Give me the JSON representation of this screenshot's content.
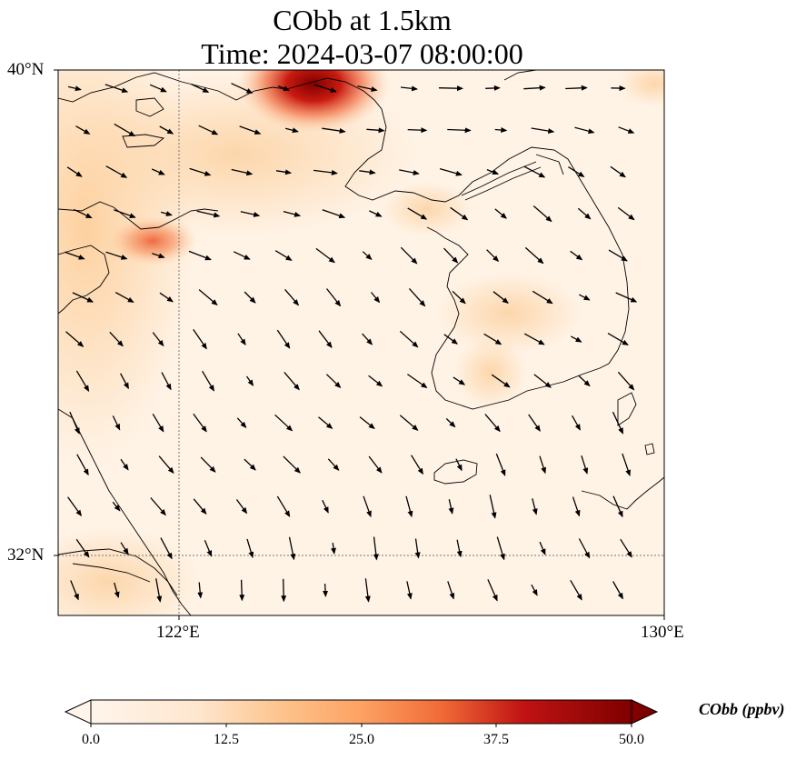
{
  "map": {
    "title_line1": "CObb at 1.5km",
    "title_line2": "Time: 2024-03-07 08:00:00",
    "lat_ticks": [
      "40°N",
      "32°N"
    ],
    "lon_ticks": [
      "122°E",
      "130°E"
    ],
    "field": "CObb",
    "units": "ppbv",
    "extent": {
      "lon": [
        120,
        130
      ],
      "lat": [
        31,
        40
      ]
    },
    "gridlines": {
      "lon": [
        122
      ],
      "lat": [
        32
      ]
    },
    "high_regions": [
      {
        "name_hint": "north plume",
        "center": [
          125.2,
          39.8
        ],
        "value": 50
      },
      {
        "name_hint": "inland hotspot",
        "center": [
          121.6,
          37.7
        ],
        "value": 28
      },
      {
        "name_hint": "korea interior",
        "center": [
          127.7,
          36.3
        ],
        "value": 14
      }
    ]
  },
  "colorbar": {
    "label": "CObb (ppbv)",
    "ticks": [
      "0.0",
      "12.5",
      "25.0",
      "37.5",
      "50.0"
    ],
    "min": 0,
    "max": 50,
    "colors": [
      "#fff5eb",
      "#fdd49e",
      "#fdae6b",
      "#f16913",
      "#d7301f",
      "#a50000",
      "#7f0000"
    ],
    "extend": "both"
  }
}
